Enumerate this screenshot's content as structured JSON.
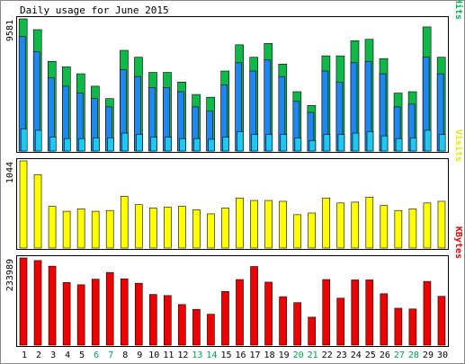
{
  "chart_data": {
    "type": "bar",
    "title": "Daily usage for June 2015",
    "days": [
      "1",
      "2",
      "3",
      "4",
      "5",
      "6",
      "7",
      "8",
      "9",
      "10",
      "11",
      "12",
      "13",
      "14",
      "15",
      "16",
      "17",
      "18",
      "19",
      "20",
      "21",
      "22",
      "23",
      "24",
      "25",
      "26",
      "27",
      "28",
      "29",
      "30"
    ],
    "weekend_days": [
      6,
      7,
      13,
      14,
      20,
      21,
      27,
      28
    ],
    "panels": [
      {
        "id": "pages-files-hits",
        "right_label": {
          "parts": [
            {
              "text": "Pages",
              "color": "#00c8c8"
            },
            {
              "text": "/",
              "color": "#333333"
            },
            {
              "text": "Files",
              "color": "#1874ff"
            },
            {
              "text": "/",
              "color": "#333333"
            },
            {
              "text": "Hits",
              "color": "#00b050"
            }
          ]
        },
        "max_label": "9581",
        "ylim": [
          0,
          9581
        ],
        "series": [
          {
            "name": "Hits",
            "color": "#10b84a",
            "values": [
              9581,
              8800,
              6500,
              6100,
              5600,
              4700,
              3800,
              7300,
              6800,
              5700,
              5700,
              5000,
              4100,
              3900,
              5800,
              7700,
              6800,
              7800,
              6300,
              4300,
              3300,
              6900,
              6900,
              8000,
              8100,
              6700,
              4200,
              4300,
              9000,
              6800
            ]
          },
          {
            "name": "Files",
            "color": "#1e88f0",
            "values": [
              8300,
              7200,
              5300,
              4700,
              4200,
              3800,
              3200,
              5900,
              5400,
              4600,
              4600,
              4300,
              3200,
              2900,
              4800,
              6400,
              5800,
              6600,
              5400,
              3600,
              2800,
              5800,
              5000,
              6400,
              6500,
              5600,
              3200,
              3400,
              6800,
              5600
            ]
          },
          {
            "name": "Pages",
            "color": "#20c8f0",
            "values": [
              1600,
              1500,
              1000,
              900,
              900,
              950,
              950,
              1300,
              1200,
              1000,
              1000,
              900,
              900,
              850,
              1000,
              1400,
              1200,
              1200,
              1200,
              950,
              750,
              1200,
              1200,
              1300,
              1400,
              1100,
              900,
              950,
              1500,
              1200
            ]
          }
        ]
      },
      {
        "id": "visits",
        "right_label": {
          "parts": [
            {
              "text": "Visits",
              "color": "#e8e800"
            }
          ]
        },
        "max_label": "1044",
        "ylim": [
          0,
          1044
        ],
        "series": [
          {
            "name": "Visits",
            "color": "#ffff00",
            "values": [
              1044,
              880,
              500,
              440,
              470,
              440,
              450,
              620,
              520,
              480,
              490,
              500,
              460,
              410,
              480,
              600,
              570,
              570,
              560,
              400,
              420,
              600,
              540,
              550,
              610,
              510,
              450,
              470,
              540,
              560
            ]
          }
        ]
      },
      {
        "id": "kbytes",
        "right_label": {
          "parts": [
            {
              "text": "KBytes",
              "color": "#e00000"
            }
          ]
        },
        "max_label": "233989",
        "ylim": [
          0,
          233989
        ],
        "series": [
          {
            "name": "KBytes",
            "color": "#ee0000",
            "values": [
              233989,
              227000,
              212000,
              168000,
              162000,
              177000,
              195000,
              178000,
              166000,
              136000,
              133000,
              109000,
              96000,
              83000,
              144000,
              176000,
              211000,
              169000,
              130000,
              114000,
              75000,
              176000,
              126000,
              175000,
              175000,
              138000,
              99000,
              97000,
              171000,
              131000
            ]
          }
        ]
      }
    ]
  }
}
